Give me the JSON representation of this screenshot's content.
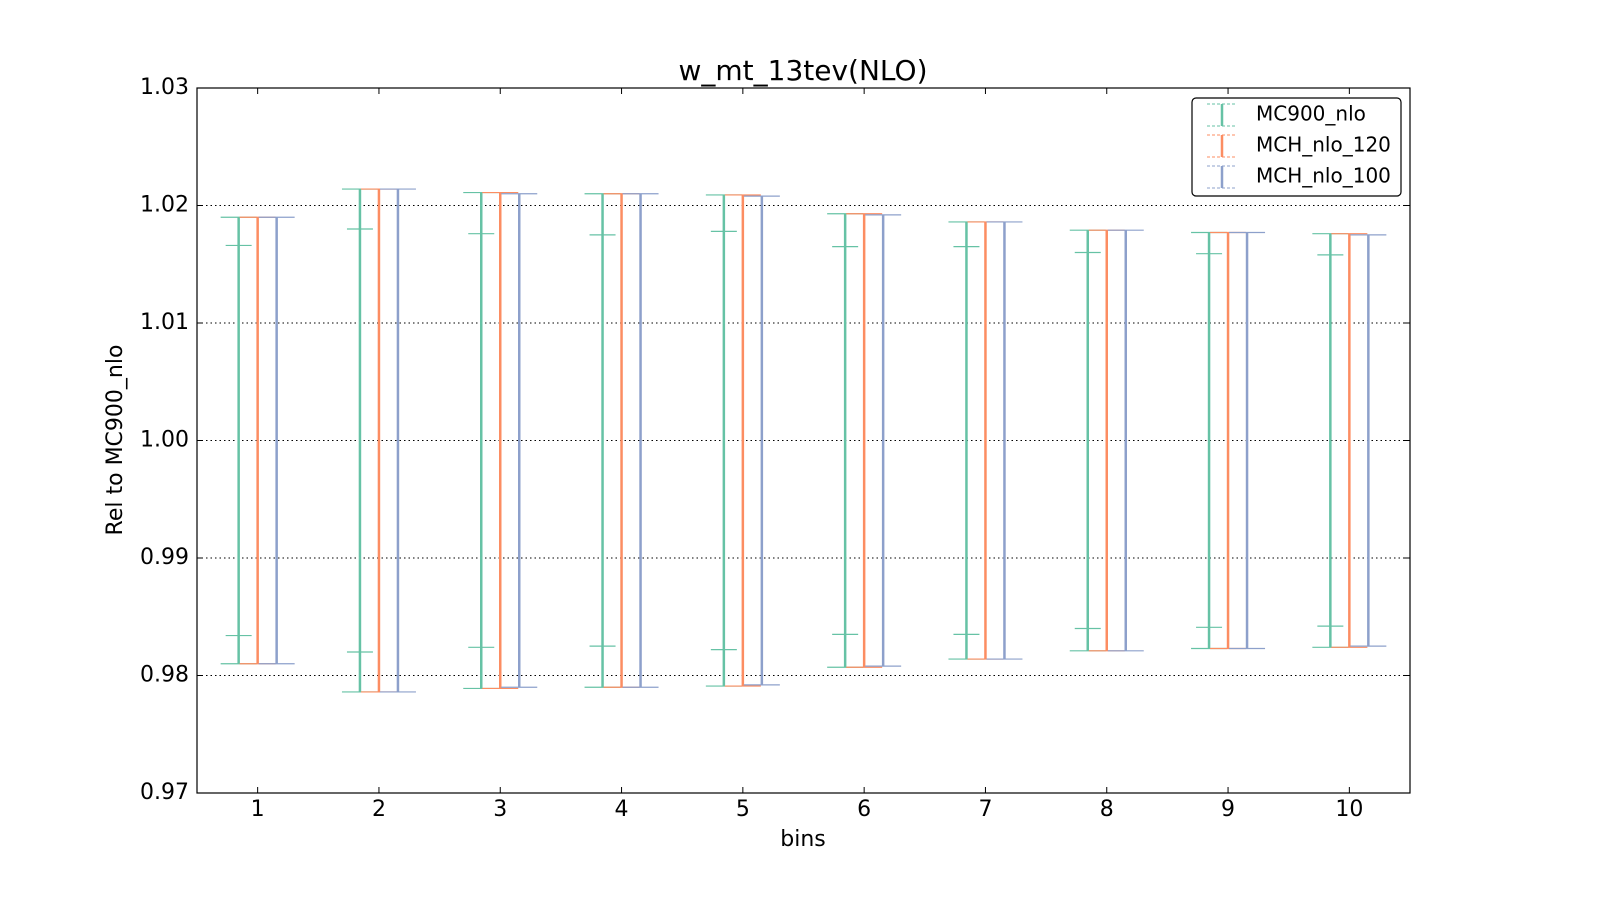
{
  "chart_data": {
    "type": "errorbar",
    "title": "w_mt_13tev(NLO)",
    "xlabel": "bins",
    "ylabel": "Rel to MC900_nlo",
    "x": [
      1,
      2,
      3,
      4,
      5,
      6,
      7,
      8,
      9,
      10
    ],
    "xlim": [
      0.5,
      10.5
    ],
    "xticks": [
      1,
      2,
      3,
      4,
      5,
      6,
      7,
      8,
      9,
      10
    ],
    "ylim": [
      0.97,
      1.03
    ],
    "yticks": [
      0.97,
      0.98,
      0.99,
      {
        "value": 1.0,
        "label": "1.00"
      },
      1.01,
      1.02,
      1.03
    ],
    "grid": true,
    "legend": "upper right",
    "series": [
      {
        "name": "MC900_nlo",
        "color": "#66c2a5",
        "values": [
          1,
          1,
          1,
          1,
          1,
          1,
          1,
          1,
          1,
          1
        ],
        "errors": [
          0.019,
          0.0214,
          0.0211,
          0.021,
          0.0209,
          0.0193,
          0.0186,
          0.0179,
          0.0177,
          0.0176
        ],
        "inner_errors": [
          0.0166,
          0.018,
          0.0176,
          0.0175,
          0.0178,
          0.0165,
          0.0165,
          0.016,
          0.0159,
          0.0158
        ]
      },
      {
        "name": "MCH_nlo_120",
        "color": "#fc8d62",
        "values": [
          1,
          1,
          1,
          1,
          1,
          1,
          1,
          1,
          1,
          1
        ],
        "errors": [
          0.019,
          0.0214,
          0.0211,
          0.021,
          0.0209,
          0.0193,
          0.0186,
          0.0179,
          0.0177,
          0.0176
        ]
      },
      {
        "name": "MCH_nlo_100",
        "color": "#8da0cb",
        "values": [
          1,
          1,
          1,
          1,
          1,
          1,
          1,
          1,
          1,
          1
        ],
        "errors": [
          0.019,
          0.0214,
          0.021,
          0.021,
          0.0208,
          0.0192,
          0.0186,
          0.0179,
          0.0177,
          0.0175
        ]
      }
    ]
  }
}
